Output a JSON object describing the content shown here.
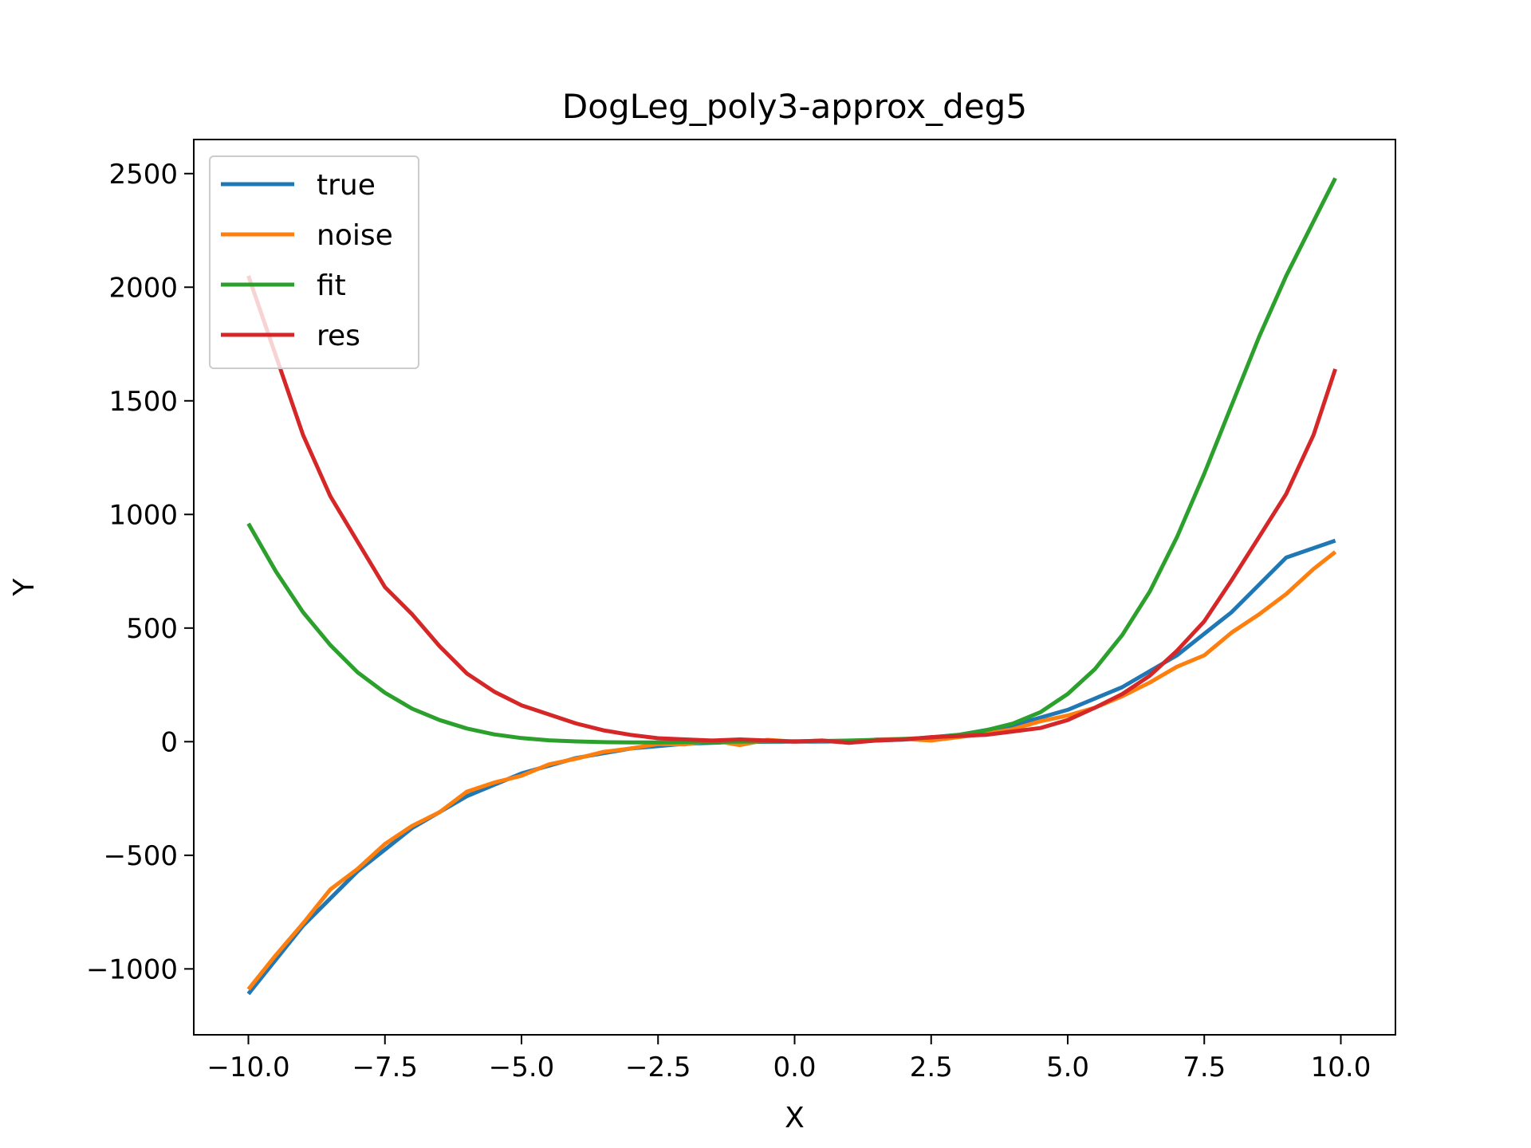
{
  "chart_data": {
    "type": "line",
    "title": "DogLeg_poly3-approx_deg5",
    "xlabel": "X",
    "ylabel": "Y",
    "xlim": [
      -11.0,
      11.0
    ],
    "ylim": [
      -1290,
      2650
    ],
    "xticks": [
      -10.0,
      -7.5,
      -5.0,
      -2.5,
      0.0,
      2.5,
      5.0,
      7.5,
      10.0
    ],
    "xtick_labels": [
      "−10.0",
      "−7.5",
      "−5.0",
      "−2.5",
      "0.0",
      "2.5",
      "5.0",
      "7.5",
      "10.0"
    ],
    "yticks": [
      -1000,
      -500,
      0,
      500,
      1000,
      1500,
      2000,
      2500
    ],
    "ytick_labels": [
      "−1000",
      "−500",
      "0",
      "500",
      "1000",
      "1500",
      "2000",
      "2500"
    ],
    "grid": false,
    "legend_position": "top-left",
    "series": [
      {
        "name": "true",
        "color": "#1f77b4",
        "x": [
          -10.0,
          -9.0,
          -8.0,
          -7.0,
          -6.0,
          -5.0,
          -4.0,
          -3.0,
          -2.0,
          -1.0,
          0.0,
          1.0,
          2.0,
          3.0,
          4.0,
          5.0,
          6.0,
          7.0,
          8.0,
          9.0,
          9.9
        ],
        "y": [
          -1110,
          -810,
          -570,
          -380,
          -240,
          -140,
          -72,
          -30,
          -9,
          -1,
          0,
          1,
          9,
          30,
          72,
          140,
          240,
          380,
          570,
          810,
          885
        ]
      },
      {
        "name": "noise",
        "color": "#ff7f0e",
        "x": [
          -10.0,
          -9.5,
          -9.0,
          -8.5,
          -8.0,
          -7.5,
          -7.0,
          -6.5,
          -6.0,
          -5.5,
          -5.0,
          -4.5,
          -4.0,
          -3.5,
          -3.0,
          -2.5,
          -2.0,
          -1.5,
          -1.0,
          -0.5,
          0.0,
          0.5,
          1.0,
          1.5,
          2.0,
          2.5,
          3.0,
          3.5,
          4.0,
          4.5,
          5.0,
          5.5,
          6.0,
          6.5,
          7.0,
          7.5,
          8.0,
          8.5,
          9.0,
          9.5,
          9.9
        ],
        "y": [
          -1090,
          -940,
          -800,
          -650,
          -560,
          -450,
          -370,
          -310,
          -220,
          -180,
          -150,
          -100,
          -75,
          -45,
          -30,
          -10,
          -12,
          5,
          -15,
          8,
          0,
          5,
          -5,
          10,
          12,
          5,
          20,
          35,
          55,
          90,
          115,
          150,
          200,
          260,
          330,
          380,
          480,
          560,
          650,
          760,
          835
        ]
      },
      {
        "name": "fit",
        "color": "#2ca02c",
        "x": [
          -10.0,
          -9.5,
          -9.0,
          -8.5,
          -8.0,
          -7.5,
          -7.0,
          -6.5,
          -6.0,
          -5.5,
          -5.0,
          -4.5,
          -4.0,
          -3.5,
          -3.0,
          -2.5,
          -2.0,
          -1.5,
          -1.0,
          -0.5,
          0.0,
          0.5,
          1.0,
          1.5,
          2.0,
          2.5,
          3.0,
          3.5,
          4.0,
          4.5,
          5.0,
          5.5,
          6.0,
          6.5,
          7.0,
          7.5,
          8.0,
          8.5,
          9.0,
          9.5,
          9.9
        ],
        "y": [
          960,
          750,
          570,
          425,
          305,
          215,
          145,
          95,
          58,
          32,
          16,
          6,
          1,
          -2,
          -3,
          -3,
          -2,
          -1,
          0,
          1,
          2,
          3,
          5,
          8,
          12,
          18,
          30,
          50,
          80,
          130,
          210,
          320,
          470,
          660,
          900,
          1180,
          1480,
          1780,
          2050,
          2290,
          2480
        ]
      },
      {
        "name": "res",
        "color": "#d62728",
        "x": [
          -10.0,
          -9.5,
          -9.0,
          -8.5,
          -8.0,
          -7.5,
          -7.0,
          -6.5,
          -6.0,
          -5.5,
          -5.0,
          -4.5,
          -4.0,
          -3.5,
          -3.0,
          -2.5,
          -2.0,
          -1.5,
          -1.0,
          -0.5,
          0.0,
          0.5,
          1.0,
          1.5,
          2.0,
          2.5,
          3.0,
          3.5,
          4.0,
          4.5,
          5.0,
          5.5,
          6.0,
          6.5,
          7.0,
          7.5,
          8.0,
          8.5,
          9.0,
          9.5,
          9.9
        ],
        "y": [
          2050,
          1700,
          1350,
          1080,
          880,
          680,
          560,
          420,
          300,
          220,
          160,
          120,
          80,
          50,
          30,
          15,
          10,
          5,
          10,
          5,
          0,
          5,
          -5,
          5,
          10,
          20,
          25,
          30,
          45,
          60,
          95,
          150,
          210,
          290,
          400,
          530,
          710,
          900,
          1090,
          1350,
          1640
        ]
      }
    ]
  }
}
